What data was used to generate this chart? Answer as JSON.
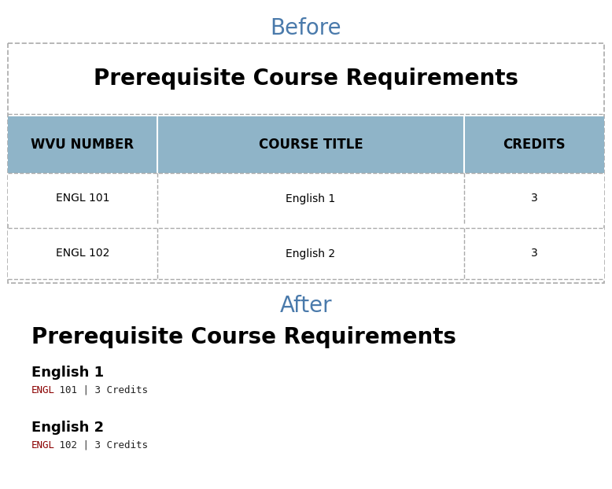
{
  "before_label": "Before",
  "after_label": "After",
  "label_color": "#4a7aab",
  "label_fontsize": 20,
  "label_font": "DejaVu Sans",
  "main_title": "Prerequisite Course Requirements",
  "main_title_fontsize": 20,
  "main_title_fontweight": "bold",
  "table_header_bg": "#8fb4c8",
  "table_header_text_color": "#000000",
  "table_headers": [
    "WVU NUMBER",
    "COURSE TITLE",
    "CREDITS"
  ],
  "table_header_fontsize": 12,
  "table_header_fontweight": "bold",
  "table_rows": [
    [
      "ENGL 101",
      "English 1",
      "3"
    ],
    [
      "ENGL 102",
      "English 2",
      "3"
    ]
  ],
  "table_row_fontsize": 10,
  "outer_border_color": "#aaaaaa",
  "dashed_border_color": "#aaaaaa",
  "after_main_title_fontsize": 20,
  "after_main_title_fontweight": "bold",
  "after_section_title_fontsize": 13,
  "after_section_title_fontweight": "bold",
  "after_detail_fontsize": 9,
  "after_detail_color_engl": "#8b0000",
  "after_detail_color_normal": "#222222",
  "courses": [
    {
      "title": "English 1",
      "code": "ENGL 101",
      "credits": "3 Credits"
    },
    {
      "title": "English 2",
      "code": "ENGL 102",
      "credits": "3 Credits"
    }
  ],
  "background_color": "#ffffff",
  "fig_w": 7.78,
  "fig_h": 6.22,
  "dpi": 100
}
